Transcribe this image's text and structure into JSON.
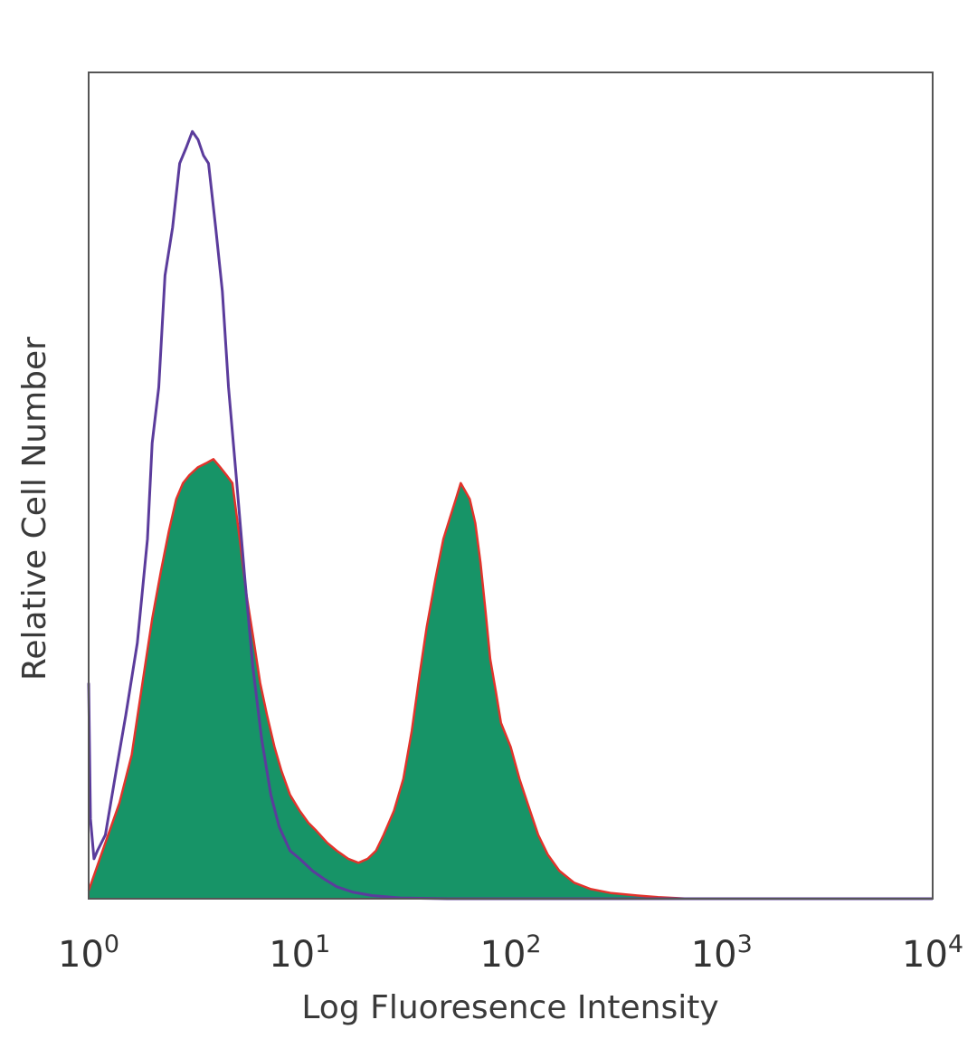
{
  "chart_data": {
    "type": "area",
    "title": "",
    "xlabel": "Log Fluoresence Intensity",
    "ylabel": "Relative Cell Number",
    "x_scale": "log",
    "xlim": [
      1,
      10000
    ],
    "ylim": [
      0,
      1.0
    ],
    "grid": false,
    "legend": "none",
    "x_ticks": [
      {
        "base": "10",
        "exp": "0",
        "value": 1
      },
      {
        "base": "10",
        "exp": "1",
        "value": 10
      },
      {
        "base": "10",
        "exp": "2",
        "value": 100
      },
      {
        "base": "10",
        "exp": "3",
        "value": 1000
      },
      {
        "base": "10",
        "exp": "4",
        "value": 10000
      }
    ],
    "series": [
      {
        "kind": "filled",
        "fill_color": "#179467",
        "edge_color": "#e2332b",
        "x": [
          1.0,
          1.2,
          1.4,
          1.6,
          1.8,
          2.0,
          2.2,
          2.4,
          2.6,
          2.8,
          3.0,
          3.3,
          3.6,
          3.9,
          4.2,
          4.5,
          4.8,
          5.2,
          5.6,
          6.0,
          6.5,
          7.0,
          7.6,
          8.2,
          9.0,
          10,
          11,
          12,
          13.5,
          15,
          17,
          19,
          21,
          23,
          25,
          28,
          31,
          34,
          37,
          40,
          44,
          48,
          52,
          55,
          58,
          61,
          64,
          68,
          72,
          76,
          80,
          85,
          90,
          100,
          110,
          120,
          135,
          150,
          170,
          200,
          240,
          300,
          400,
          500,
          700,
          1000,
          2000,
          5000,
          10000
        ],
        "values": [
          0.01,
          0.07,
          0.12,
          0.18,
          0.27,
          0.35,
          0.41,
          0.46,
          0.5,
          0.52,
          0.53,
          0.54,
          0.545,
          0.55,
          0.54,
          0.53,
          0.52,
          0.45,
          0.38,
          0.33,
          0.27,
          0.23,
          0.19,
          0.16,
          0.13,
          0.11,
          0.095,
          0.085,
          0.07,
          0.06,
          0.05,
          0.045,
          0.05,
          0.06,
          0.08,
          0.11,
          0.15,
          0.21,
          0.28,
          0.34,
          0.4,
          0.45,
          0.48,
          0.5,
          0.52,
          0.51,
          0.5,
          0.47,
          0.42,
          0.36,
          0.3,
          0.26,
          0.22,
          0.19,
          0.15,
          0.12,
          0.08,
          0.055,
          0.035,
          0.02,
          0.012,
          0.007,
          0.004,
          0.002,
          0.0,
          0.0,
          0.0,
          0.0,
          0.0
        ]
      },
      {
        "kind": "line",
        "line_color": "#5b3c9c",
        "x": [
          1.0,
          1.02,
          1.06,
          1.1,
          1.2,
          1.35,
          1.5,
          1.7,
          1.9,
          2.0,
          2.15,
          2.3,
          2.5,
          2.7,
          2.9,
          3.1,
          3.3,
          3.5,
          3.7,
          4.0,
          4.3,
          4.6,
          5.0,
          5.5,
          6.0,
          6.6,
          7.3,
          8.0,
          9.0,
          10,
          11.5,
          13,
          15,
          18,
          22,
          30,
          50,
          100,
          10000
        ],
        "values": [
          0.27,
          0.1,
          0.05,
          0.06,
          0.08,
          0.16,
          0.23,
          0.32,
          0.45,
          0.57,
          0.64,
          0.78,
          0.84,
          0.92,
          0.94,
          0.96,
          0.95,
          0.93,
          0.92,
          0.84,
          0.76,
          0.64,
          0.53,
          0.4,
          0.29,
          0.2,
          0.13,
          0.09,
          0.06,
          0.05,
          0.035,
          0.025,
          0.015,
          0.008,
          0.004,
          0.001,
          0.0,
          0.0,
          0.0
        ]
      }
    ]
  }
}
